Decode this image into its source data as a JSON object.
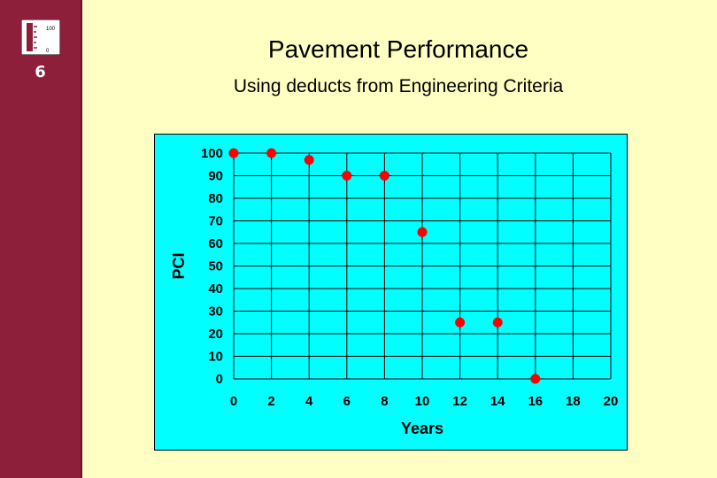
{
  "sidebar": {
    "logo": {
      "top_label": "100",
      "bottom_label": "0",
      "icon": "pci-scale-icon"
    },
    "slide_number": "6"
  },
  "header": {
    "title": "Pavement Performance",
    "subtitle": "Using deducts from Engineering Criteria"
  },
  "colors": {
    "sidebar": "#8e1f3b",
    "background": "#ffffc4",
    "plot_area": "#00ffff",
    "markers": "#ff0000"
  },
  "chart_data": {
    "type": "scatter",
    "xlabel": "Years",
    "ylabel": "PCI",
    "xlim": [
      0,
      20
    ],
    "ylim": [
      0,
      100
    ],
    "xticks": [
      0,
      2,
      4,
      6,
      8,
      10,
      12,
      14,
      16,
      18,
      20
    ],
    "yticks": [
      0,
      10,
      20,
      30,
      40,
      50,
      60,
      70,
      80,
      90,
      100
    ],
    "grid": true,
    "x": [
      0,
      2,
      4,
      6,
      8,
      10,
      12,
      14,
      16
    ],
    "y": [
      100,
      100,
      97,
      90,
      90,
      65,
      25,
      25,
      0
    ]
  }
}
